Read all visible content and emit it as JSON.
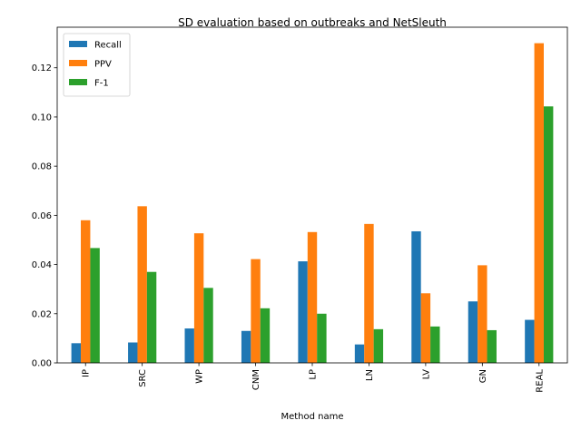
{
  "chart_data": {
    "type": "bar",
    "title": "SD evaluation based on outbreaks and NetSleuth",
    "xlabel": "Method name",
    "ylabel": "",
    "categories": [
      "IP",
      "SRC",
      "WP",
      "CNM",
      "LP",
      "LN",
      "LV",
      "GN",
      "REAL"
    ],
    "series": [
      {
        "name": "Recall",
        "color": "#1f77b4",
        "values": [
          0.008,
          0.0083,
          0.014,
          0.013,
          0.0413,
          0.0075,
          0.0535,
          0.025,
          0.0175
        ]
      },
      {
        "name": "PPV",
        "color": "#ff7f0e",
        "values": [
          0.058,
          0.0637,
          0.0527,
          0.0422,
          0.0532,
          0.0565,
          0.0283,
          0.0397,
          0.13
        ]
      },
      {
        "name": "F-1",
        "color": "#2ca02c",
        "values": [
          0.0467,
          0.037,
          0.0305,
          0.0222,
          0.02,
          0.0137,
          0.0148,
          0.0133,
          0.1043
        ]
      }
    ],
    "ylim": [
      0,
      0.1365
    ],
    "yticks": [
      "0.00",
      "0.02",
      "0.04",
      "0.06",
      "0.08",
      "0.10",
      "0.12"
    ],
    "grid": false,
    "legend_position": "top-left"
  }
}
